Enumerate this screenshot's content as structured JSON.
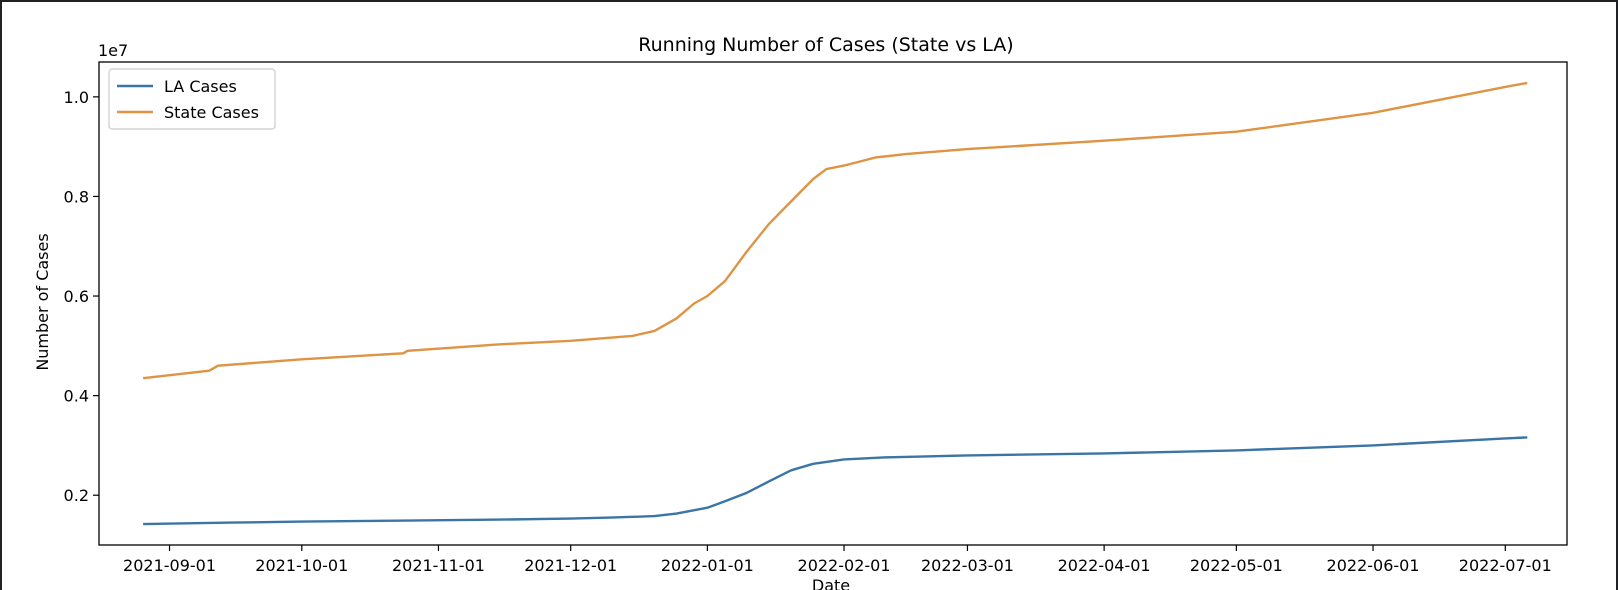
{
  "chart_data": {
    "type": "line",
    "title": "Running Number of Cases (State vs LA)",
    "xlabel": "Date",
    "ylabel": "Number of Cases",
    "y_offset_label": "1e7",
    "x_range": [
      "2021-08-16",
      "2022-07-15"
    ],
    "ylim": [
      0.1,
      1.07
    ],
    "y_ticks": [
      0.2,
      0.4,
      0.6,
      0.8,
      1.0
    ],
    "y_tick_labels": [
      "0.2",
      "0.4",
      "0.6",
      "0.8",
      "1.0"
    ],
    "x_ticks": [
      "2021-09-01",
      "2021-10-01",
      "2021-11-01",
      "2021-12-01",
      "2022-01-01",
      "2022-02-01",
      "2022-03-01",
      "2022-04-01",
      "2022-05-01",
      "2022-06-01",
      "2022-07-01"
    ],
    "grid": false,
    "legend_position": "upper-left",
    "series": [
      {
        "name": "LA Cases",
        "color": "#3b75a6",
        "points": [
          [
            "2021-08-26",
            0.142
          ],
          [
            "2021-09-15",
            0.145
          ],
          [
            "2021-10-01",
            0.147
          ],
          [
            "2021-10-25",
            0.149
          ],
          [
            "2021-11-15",
            0.151
          ],
          [
            "2021-12-01",
            0.153
          ],
          [
            "2021-12-10",
            0.155
          ],
          [
            "2021-12-20",
            0.158
          ],
          [
            "2021-12-25",
            0.163
          ],
          [
            "2022-01-01",
            0.175
          ],
          [
            "2022-01-05",
            0.188
          ],
          [
            "2022-01-10",
            0.205
          ],
          [
            "2022-01-15",
            0.228
          ],
          [
            "2022-01-20",
            0.25
          ],
          [
            "2022-01-25",
            0.263
          ],
          [
            "2022-02-01",
            0.272
          ],
          [
            "2022-02-10",
            0.276
          ],
          [
            "2022-03-01",
            0.28
          ],
          [
            "2022-04-01",
            0.284
          ],
          [
            "2022-05-01",
            0.29
          ],
          [
            "2022-06-01",
            0.3
          ],
          [
            "2022-07-01",
            0.314
          ],
          [
            "2022-07-06",
            0.316
          ]
        ]
      },
      {
        "name": "State Cases",
        "color": "#de9444",
        "points": [
          [
            "2021-08-26",
            0.435
          ],
          [
            "2021-09-10",
            0.45
          ],
          [
            "2021-09-12",
            0.46
          ],
          [
            "2021-10-01",
            0.473
          ],
          [
            "2021-10-24",
            0.485
          ],
          [
            "2021-10-25",
            0.49
          ],
          [
            "2021-11-15",
            0.503
          ],
          [
            "2021-12-01",
            0.51
          ],
          [
            "2021-12-15",
            0.52
          ],
          [
            "2021-12-20",
            0.53
          ],
          [
            "2021-12-25",
            0.555
          ],
          [
            "2021-12-29",
            0.585
          ],
          [
            "2022-01-01",
            0.6
          ],
          [
            "2022-01-05",
            0.63
          ],
          [
            "2022-01-10",
            0.69
          ],
          [
            "2022-01-15",
            0.745
          ],
          [
            "2022-01-20",
            0.79
          ],
          [
            "2022-01-25",
            0.835
          ],
          [
            "2022-01-28",
            0.855
          ],
          [
            "2022-02-01",
            0.862
          ],
          [
            "2022-02-08",
            0.878
          ],
          [
            "2022-02-15",
            0.885
          ],
          [
            "2022-03-01",
            0.895
          ],
          [
            "2022-04-01",
            0.912
          ],
          [
            "2022-05-01",
            0.93
          ],
          [
            "2022-06-01",
            0.968
          ],
          [
            "2022-07-01",
            1.02
          ],
          [
            "2022-07-06",
            1.028
          ]
        ]
      }
    ]
  }
}
